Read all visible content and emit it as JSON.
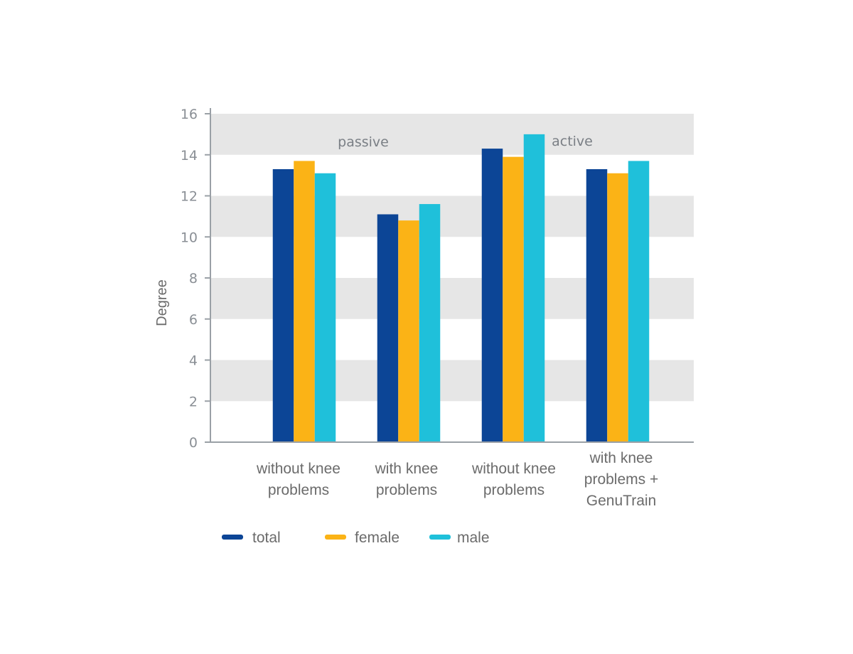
{
  "colors": {
    "total": "#0c4596",
    "female": "#fbb316",
    "male": "#1fc0da",
    "band": "#e6e6e6",
    "axis": "#9aa0a6"
  },
  "chart_data": {
    "type": "bar",
    "title": "",
    "xlabel": "",
    "ylabel": "Degree",
    "ylim": [
      0,
      16
    ],
    "yticks": [
      0,
      2,
      4,
      6,
      8,
      10,
      12,
      14,
      16
    ],
    "grid": "alternating horizontal bands",
    "legend_position": "bottom-left",
    "group_labels": [
      {
        "text": "passive",
        "over": "categories 1-2"
      },
      {
        "text": "active",
        "over": "categories 3-4"
      }
    ],
    "categories": [
      [
        "without knee",
        "problems"
      ],
      [
        "with knee",
        "problems"
      ],
      [
        "without knee",
        "problems"
      ],
      [
        "with knee",
        "problems +",
        "GenuTrain"
      ]
    ],
    "series": [
      {
        "name": "total",
        "key": "total",
        "values": [
          13.3,
          11.1,
          14.3,
          13.3
        ]
      },
      {
        "name": "female",
        "key": "female",
        "values": [
          13.7,
          10.8,
          13.9,
          13.1
        ]
      },
      {
        "name": "male",
        "key": "male",
        "values": [
          13.1,
          11.6,
          15.0,
          13.7
        ]
      }
    ]
  }
}
